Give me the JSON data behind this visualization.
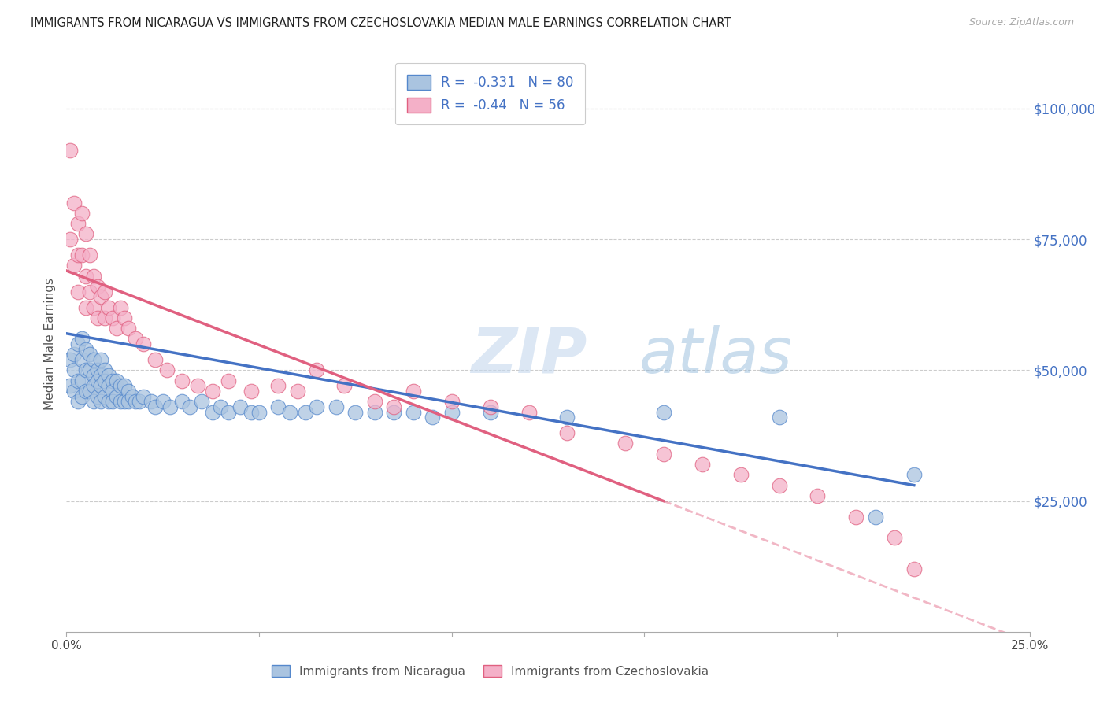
{
  "title": "IMMIGRANTS FROM NICARAGUA VS IMMIGRANTS FROM CZECHOSLOVAKIA MEDIAN MALE EARNINGS CORRELATION CHART",
  "source": "Source: ZipAtlas.com",
  "ylabel": "Median Male Earnings",
  "xlim": [
    0.0,
    0.25
  ],
  "ylim": [
    0,
    110000
  ],
  "xticks": [
    0.0,
    0.05,
    0.1,
    0.15,
    0.2,
    0.25
  ],
  "xticklabels": [
    "0.0%",
    "",
    "",
    "",
    "",
    "25.0%"
  ],
  "ytick_positions": [
    0,
    25000,
    50000,
    75000,
    100000
  ],
  "ytick_labels_right": [
    "",
    "$25,000",
    "$50,000",
    "$75,000",
    "$100,000"
  ],
  "nicaragua_color": "#aac4e0",
  "nicaragua_edge_color": "#5588cc",
  "nicaragua_line_color": "#4472c4",
  "czechoslovakia_color": "#f4b0c8",
  "czechoslovakia_edge_color": "#e06080",
  "czechoslovakia_line_color": "#e06080",
  "nicaragua_R": -0.331,
  "nicaragua_N": 80,
  "czechoslovakia_R": -0.44,
  "czechoslovakia_N": 56,
  "legend_label_nicaragua": "Immigrants from Nicaragua",
  "legend_label_czechoslovakia": "Immigrants from Czechoslovakia",
  "watermark_zip": "ZIP",
  "watermark_atlas": "atlas",
  "background_color": "#ffffff",
  "grid_color": "#cccccc",
  "nicaragua_scatter_x": [
    0.001,
    0.001,
    0.002,
    0.002,
    0.002,
    0.003,
    0.003,
    0.003,
    0.004,
    0.004,
    0.004,
    0.004,
    0.005,
    0.005,
    0.005,
    0.006,
    0.006,
    0.006,
    0.007,
    0.007,
    0.007,
    0.007,
    0.008,
    0.008,
    0.008,
    0.009,
    0.009,
    0.009,
    0.009,
    0.01,
    0.01,
    0.01,
    0.011,
    0.011,
    0.011,
    0.012,
    0.012,
    0.012,
    0.013,
    0.013,
    0.014,
    0.014,
    0.015,
    0.015,
    0.016,
    0.016,
    0.017,
    0.018,
    0.019,
    0.02,
    0.022,
    0.023,
    0.025,
    0.027,
    0.03,
    0.032,
    0.035,
    0.038,
    0.04,
    0.042,
    0.045,
    0.048,
    0.05,
    0.055,
    0.058,
    0.062,
    0.065,
    0.07,
    0.075,
    0.08,
    0.085,
    0.09,
    0.095,
    0.1,
    0.11,
    0.13,
    0.155,
    0.185,
    0.21,
    0.22
  ],
  "nicaragua_scatter_y": [
    52000,
    47000,
    53000,
    50000,
    46000,
    55000,
    48000,
    44000,
    56000,
    52000,
    48000,
    45000,
    54000,
    50000,
    46000,
    53000,
    50000,
    46000,
    52000,
    49000,
    47000,
    44000,
    50000,
    48000,
    45000,
    52000,
    49000,
    47000,
    44000,
    50000,
    48000,
    45000,
    49000,
    47000,
    44000,
    48000,
    46000,
    44000,
    48000,
    45000,
    47000,
    44000,
    47000,
    44000,
    46000,
    44000,
    45000,
    44000,
    44000,
    45000,
    44000,
    43000,
    44000,
    43000,
    44000,
    43000,
    44000,
    42000,
    43000,
    42000,
    43000,
    42000,
    42000,
    43000,
    42000,
    42000,
    43000,
    43000,
    42000,
    42000,
    42000,
    42000,
    41000,
    42000,
    42000,
    41000,
    42000,
    41000,
    22000,
    30000
  ],
  "czechoslovakia_scatter_x": [
    0.001,
    0.001,
    0.002,
    0.002,
    0.003,
    0.003,
    0.003,
    0.004,
    0.004,
    0.005,
    0.005,
    0.005,
    0.006,
    0.006,
    0.007,
    0.007,
    0.008,
    0.008,
    0.009,
    0.01,
    0.01,
    0.011,
    0.012,
    0.013,
    0.014,
    0.015,
    0.016,
    0.018,
    0.02,
    0.023,
    0.026,
    0.03,
    0.034,
    0.038,
    0.042,
    0.048,
    0.055,
    0.06,
    0.065,
    0.072,
    0.08,
    0.085,
    0.09,
    0.1,
    0.11,
    0.12,
    0.13,
    0.145,
    0.155,
    0.165,
    0.175,
    0.185,
    0.195,
    0.205,
    0.215,
    0.22
  ],
  "czechoslovakia_scatter_y": [
    92000,
    75000,
    82000,
    70000,
    78000,
    72000,
    65000,
    80000,
    72000,
    76000,
    68000,
    62000,
    72000,
    65000,
    68000,
    62000,
    66000,
    60000,
    64000,
    65000,
    60000,
    62000,
    60000,
    58000,
    62000,
    60000,
    58000,
    56000,
    55000,
    52000,
    50000,
    48000,
    47000,
    46000,
    48000,
    46000,
    47000,
    46000,
    50000,
    47000,
    44000,
    43000,
    46000,
    44000,
    43000,
    42000,
    38000,
    36000,
    34000,
    32000,
    30000,
    28000,
    26000,
    22000,
    18000,
    12000
  ]
}
